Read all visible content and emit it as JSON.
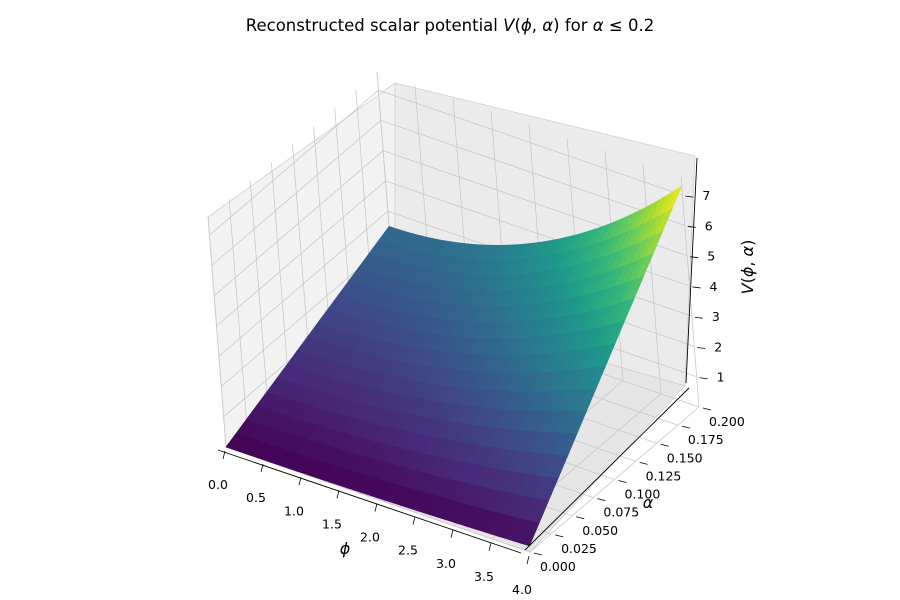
{
  "chart_data": {
    "type": "surface",
    "title": "Reconstructed scalar potential V(ϕ, α) for α ≤ 0.2",
    "xlabel": "ϕ",
    "ylabel": "α",
    "zlabel": "V(ϕ, α)",
    "x_ticks": [
      "0.0",
      "0.5",
      "1.0",
      "1.5",
      "2.0",
      "2.5",
      "3.0",
      "3.5",
      "4.0"
    ],
    "y_ticks": [
      "0.000",
      "0.025",
      "0.050",
      "0.075",
      "0.100",
      "0.125",
      "0.150",
      "0.175",
      "0.200"
    ],
    "z_ticks": [
      "1",
      "2",
      "3",
      "4",
      "5",
      "6",
      "7"
    ],
    "xlim": [
      0,
      4
    ],
    "ylim": [
      0,
      0.2
    ],
    "colormap": "viridis",
    "corner_values": [
      {
        "phi": 0,
        "alpha": 0,
        "V": 0.0
      },
      {
        "phi": 0,
        "alpha": 0.2,
        "V": 2.5
      },
      {
        "phi": 4,
        "alpha": 0,
        "V": 0.2
      },
      {
        "phi": 4,
        "alpha": 0.2,
        "V": 7.3
      }
    ]
  }
}
